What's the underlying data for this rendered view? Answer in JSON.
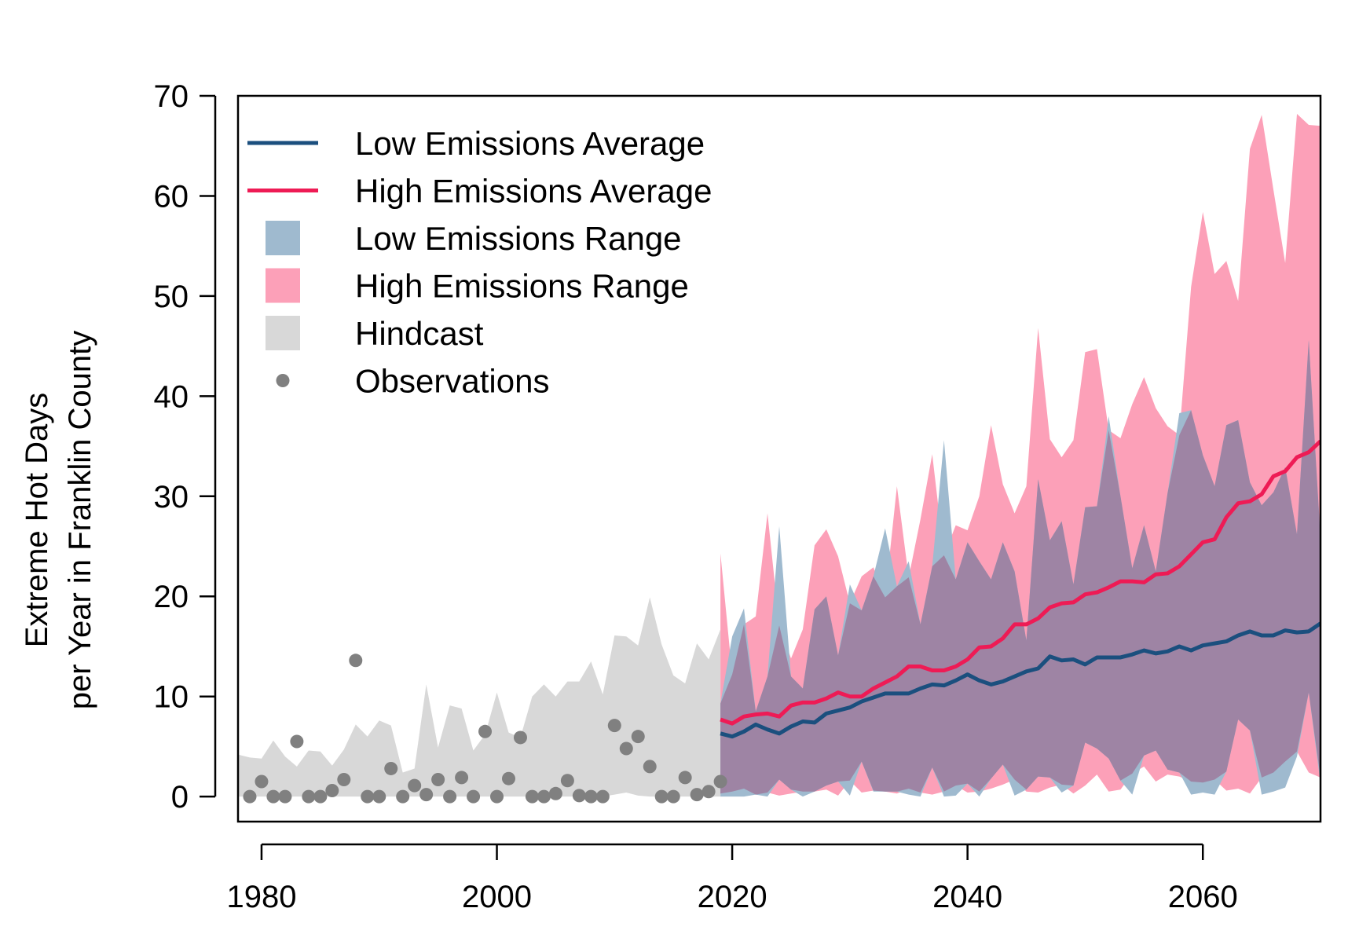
{
  "chart_data": {
    "type": "line",
    "xlabel": "",
    "ylabel_lines": [
      "Extreme Hot Days",
      "per Year in Franklin County"
    ],
    "xlim": [
      1978,
      2070
    ],
    "ylim": [
      -2.5,
      70
    ],
    "xticks": [
      1980,
      2000,
      2020,
      2040,
      2060
    ],
    "yticks": [
      0,
      10,
      20,
      30,
      40,
      50,
      60,
      70
    ],
    "grid": false,
    "legend_position": "top-left",
    "colors": {
      "low_avg": "#1b4f7e",
      "high_avg": "#ee1b55",
      "low_range": "#9fbacf",
      "high_range": "#fca0b8",
      "overlap": "#9e84a4",
      "hindcast": "#d8d8d8",
      "observations": "#808080"
    },
    "legend": [
      {
        "label": "Low Emissions Average",
        "kind": "line",
        "color_key": "low_avg"
      },
      {
        "label": "High Emissions Average",
        "kind": "line",
        "color_key": "high_avg"
      },
      {
        "label": "Low Emissions Range",
        "kind": "box",
        "color_key": "low_range"
      },
      {
        "label": "High Emissions Range",
        "kind": "box",
        "color_key": "high_range"
      },
      {
        "label": "Hindcast",
        "kind": "box",
        "color_key": "hindcast"
      },
      {
        "label": "Observations",
        "kind": "point",
        "color_key": "observations"
      }
    ],
    "observations": {
      "x": [
        1979,
        1980,
        1981,
        1982,
        1983,
        1984,
        1985,
        1986,
        1987,
        1988,
        1989,
        1990,
        1991,
        1992,
        1993,
        1994,
        1995,
        1996,
        1997,
        1998,
        1999,
        2000,
        2001,
        2002,
        2003,
        2004,
        2005,
        2006,
        2007,
        2008,
        2009,
        2010,
        2011,
        2012,
        2013,
        2014,
        2015,
        2016,
        2017,
        2018,
        2019
      ],
      "y": [
        0,
        1.5,
        0,
        0,
        5.5,
        0,
        0,
        0.6,
        1.7,
        13.6,
        0,
        0,
        2.8,
        0,
        1.1,
        0.2,
        1.7,
        0,
        1.9,
        0,
        6.5,
        0,
        1.8,
        5.9,
        0,
        0,
        0.3,
        1.6,
        0.1,
        0,
        0,
        7.1,
        4.8,
        6,
        3,
        0,
        0,
        1.9,
        0.2,
        0.5,
        1.5
      ]
    },
    "hindcast": {
      "x": [
        1978,
        1979,
        1980,
        1981,
        1982,
        1983,
        1984,
        1985,
        1986,
        1987,
        1988,
        1989,
        1990,
        1991,
        1992,
        1993,
        1994,
        1995,
        1996,
        1997,
        1998,
        1999,
        2000,
        2001,
        2002,
        2003,
        2004,
        2005,
        2006,
        2007,
        2008,
        2009,
        2010,
        2011,
        2012,
        2013,
        2014,
        2015,
        2016,
        2017,
        2018,
        2019
      ],
      "upper": [
        4.2,
        3.9,
        3.8,
        5.6,
        4,
        3,
        4.6,
        4.5,
        3.1,
        4.7,
        7.2,
        6,
        7.6,
        7.1,
        2.4,
        2.8,
        11.2,
        4.9,
        9.1,
        8.8,
        4.6,
        6.2,
        10.4,
        6.4,
        5.9,
        10,
        11.2,
        10,
        11.5,
        11.5,
        13.5,
        10.2,
        16.1,
        16,
        15.1,
        19.9,
        15.2,
        12.1,
        11.3,
        15.3,
        13.7,
        16.7
      ],
      "lower": [
        0,
        0,
        0,
        0,
        0,
        0,
        0,
        0,
        0,
        0,
        0,
        0,
        0,
        0,
        0,
        0,
        0,
        0,
        0,
        0,
        0,
        0,
        0,
        0,
        0,
        0,
        0,
        0,
        0,
        0,
        0,
        0,
        0.2,
        0.4,
        0.1,
        0,
        0,
        0,
        0,
        0,
        0,
        0
      ]
    },
    "projections": {
      "x": [
        2019,
        2020,
        2021,
        2022,
        2023,
        2024,
        2025,
        2026,
        2027,
        2028,
        2029,
        2030,
        2031,
        2032,
        2033,
        2034,
        2035,
        2036,
        2037,
        2038,
        2039,
        2040,
        2041,
        2042,
        2043,
        2044,
        2045,
        2046,
        2047,
        2048,
        2049,
        2050,
        2051,
        2052,
        2053,
        2054,
        2055,
        2056,
        2057,
        2058,
        2059,
        2060,
        2061,
        2062,
        2063,
        2064,
        2065,
        2066,
        2067,
        2068,
        2069,
        2070
      ],
      "low_avg": [
        6.3,
        6,
        6.5,
        7.2,
        6.7,
        6.3,
        7,
        7.5,
        7.4,
        8.3,
        8.6,
        8.9,
        9.5,
        9.9,
        10.3,
        10.3,
        10.3,
        10.8,
        11.2,
        11.1,
        11.6,
        12.2,
        11.6,
        11.2,
        11.5,
        12,
        12.5,
        12.8,
        14,
        13.6,
        13.7,
        13.2,
        13.9,
        13.9,
        13.9,
        14.2,
        14.6,
        14.3,
        14.5,
        15,
        14.6,
        15.1,
        15.3,
        15.5,
        16.1,
        16.5,
        16.1,
        16.1,
        16.6,
        16.4,
        16.5,
        17.3
      ],
      "low_upper": [
        9.3,
        16,
        18.8,
        8.5,
        12,
        27,
        12,
        10.8,
        18.7,
        20,
        14.1,
        21.2,
        18.6,
        22,
        26.8,
        21,
        23.5,
        17.2,
        23,
        35.6,
        21.7,
        25.4,
        23.5,
        21.7,
        25.4,
        22.5,
        15.6,
        31.7,
        25.6,
        27.5,
        21.2,
        28.9,
        29,
        38,
        30,
        22.8,
        27.1,
        22.5,
        30.3,
        38.3,
        38.6,
        34.1,
        31,
        37.1,
        37.6,
        31.4,
        29.1,
        30.4,
        32.9,
        26.2,
        45.6,
        25.8
      ],
      "low_lower": [
        0,
        0,
        0,
        0.2,
        0,
        1.7,
        0.7,
        0,
        0.5,
        1.1,
        1.5,
        0.1,
        3.5,
        0.5,
        0.5,
        0.5,
        0.2,
        0,
        2.9,
        0,
        0.1,
        1.3,
        0,
        1.8,
        3.2,
        0.1,
        0.7,
        2,
        1.9,
        0.4,
        1.1,
        5.4,
        4.8,
        3.8,
        1.6,
        0.2,
        4.1,
        4.6,
        2.7,
        2.4,
        0.2,
        0.4,
        0.2,
        2.5,
        7.7,
        6.6,
        0.2,
        0.5,
        0.9,
        4,
        10.4,
        1.3
      ],
      "high_avg": [
        7.7,
        7.3,
        8,
        8.2,
        8.3,
        8,
        9.1,
        9.4,
        9.4,
        9.8,
        10.4,
        10,
        10,
        10.8,
        11.4,
        12,
        13,
        13,
        12.6,
        12.6,
        13,
        13.7,
        14.9,
        15,
        15.8,
        17.2,
        17.2,
        17.8,
        18.9,
        19.3,
        19.4,
        20.2,
        20.4,
        20.9,
        21.5,
        21.5,
        21.4,
        22.2,
        22.3,
        23,
        24.2,
        25.4,
        25.7,
        27.9,
        29.3,
        29.5,
        30.2,
        32,
        32.5,
        33.9,
        34.4,
        35.5
      ],
      "high_upper": [
        24.3,
        12.2,
        17.2,
        18,
        28.3,
        17.1,
        13.8,
        16.7,
        25.1,
        26.7,
        24,
        19.3,
        22,
        22.9,
        19.9,
        31,
        21.9,
        27.7,
        34.2,
        24.1,
        27.1,
        26.6,
        30,
        37.1,
        31.2,
        28.3,
        31,
        46.8,
        35.7,
        33.9,
        35.6,
        44.4,
        44.7,
        36.6,
        35.8,
        39.2,
        41.9,
        38.8,
        37,
        36.1,
        50.9,
        58.4,
        52.2,
        53.5,
        49.5,
        64.7,
        68.1,
        60.6,
        53.3,
        68.2,
        67.1,
        67
      ],
      "high_lower": [
        0.3,
        0.5,
        0.8,
        0.2,
        0.4,
        0.1,
        0.3,
        0.5,
        0.5,
        0.7,
        0.1,
        1.6,
        0.4,
        0.6,
        0.5,
        0.3,
        0.8,
        0.4,
        0.2,
        0.5,
        1.1,
        0.4,
        0.5,
        0.8,
        1.2,
        1.7,
        0.5,
        0.4,
        0.9,
        1.2,
        0.3,
        1.1,
        2.2,
        0.5,
        0.7,
        2.3,
        3,
        1.5,
        2.2,
        2,
        1.5,
        1.4,
        1.7,
        0.6,
        0.8,
        0.3,
        1.9,
        2.4,
        3.5,
        4.5,
        2.4,
        1.9
      ]
    }
  }
}
